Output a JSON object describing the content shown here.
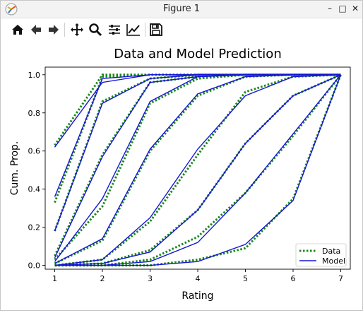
{
  "window": {
    "title": "Figure 1",
    "minimize_glyph": "–",
    "maximize_glyph": "□",
    "close_glyph": "✕"
  },
  "toolbar": {
    "buttons": [
      "home-icon",
      "back-arrow-icon",
      "forward-arrow-icon",
      "pan-icon",
      "zoom-icon",
      "configure-subplots-icon",
      "edit-axis-icon",
      "save-icon"
    ]
  },
  "colors": {
    "data_line": "#1a8a1a",
    "model_line": "#1515d6",
    "axes": "#000000"
  },
  "chart_data": {
    "type": "line",
    "title": "Data and Model Prediction",
    "xlabel": "Rating",
    "ylabel": "Cum. Prop.",
    "xlim": [
      0.8,
      7.2
    ],
    "ylim": [
      -0.02,
      1.04
    ],
    "xticks": [
      "1",
      "2",
      "3",
      "4",
      "5",
      "6",
      "7"
    ],
    "yticks": [
      "0.0",
      "0.2",
      "0.4",
      "0.6",
      "0.8",
      "1.0"
    ],
    "legend_position": "lower-right",
    "legend": [
      "Data",
      "Model"
    ],
    "x": [
      1,
      2,
      3,
      4,
      5,
      6,
      7
    ],
    "data_series": [
      [
        0.63,
        1.0,
        1.0,
        1.0,
        1.0,
        1.0,
        1.0
      ],
      [
        0.33,
        0.99,
        1.0,
        1.0,
        1.0,
        1.0,
        1.0
      ],
      [
        0.18,
        0.86,
        0.98,
        1.0,
        1.0,
        1.0,
        1.0
      ],
      [
        0.05,
        0.58,
        0.96,
        0.99,
        1.0,
        1.0,
        1.0
      ],
      [
        0.03,
        0.31,
        0.85,
        0.98,
        1.0,
        1.0,
        1.0
      ],
      [
        0.01,
        0.13,
        0.6,
        0.89,
        0.99,
        1.0,
        1.0
      ],
      [
        0.0,
        0.03,
        0.23,
        0.58,
        0.91,
        0.99,
        1.0
      ],
      [
        0.0,
        0.01,
        0.08,
        0.29,
        0.64,
        0.89,
        1.0
      ],
      [
        0.0,
        0.0,
        0.03,
        0.15,
        0.38,
        0.68,
        1.0
      ],
      [
        0.0,
        0.0,
        0.0,
        0.03,
        0.09,
        0.35,
        1.0
      ]
    ],
    "model_series": [
      [
        0.62,
        0.96,
        1.0,
        1.0,
        1.0,
        1.0,
        1.0
      ],
      [
        0.36,
        0.98,
        1.0,
        1.0,
        1.0,
        1.0,
        1.0
      ],
      [
        0.18,
        0.85,
        0.98,
        1.0,
        1.0,
        1.0,
        1.0
      ],
      [
        0.04,
        0.57,
        0.96,
        0.99,
        1.0,
        1.0,
        1.0
      ],
      [
        0.02,
        0.35,
        0.86,
        0.99,
        1.0,
        1.0,
        1.0
      ],
      [
        0.01,
        0.14,
        0.61,
        0.9,
        0.99,
        1.0,
        1.0
      ],
      [
        0.0,
        0.03,
        0.25,
        0.61,
        0.89,
        0.99,
        1.0
      ],
      [
        0.0,
        0.01,
        0.07,
        0.29,
        0.64,
        0.89,
        1.0
      ],
      [
        0.0,
        0.0,
        0.02,
        0.12,
        0.38,
        0.69,
        1.0
      ],
      [
        0.0,
        0.0,
        0.0,
        0.02,
        0.11,
        0.34,
        1.0
      ]
    ]
  }
}
